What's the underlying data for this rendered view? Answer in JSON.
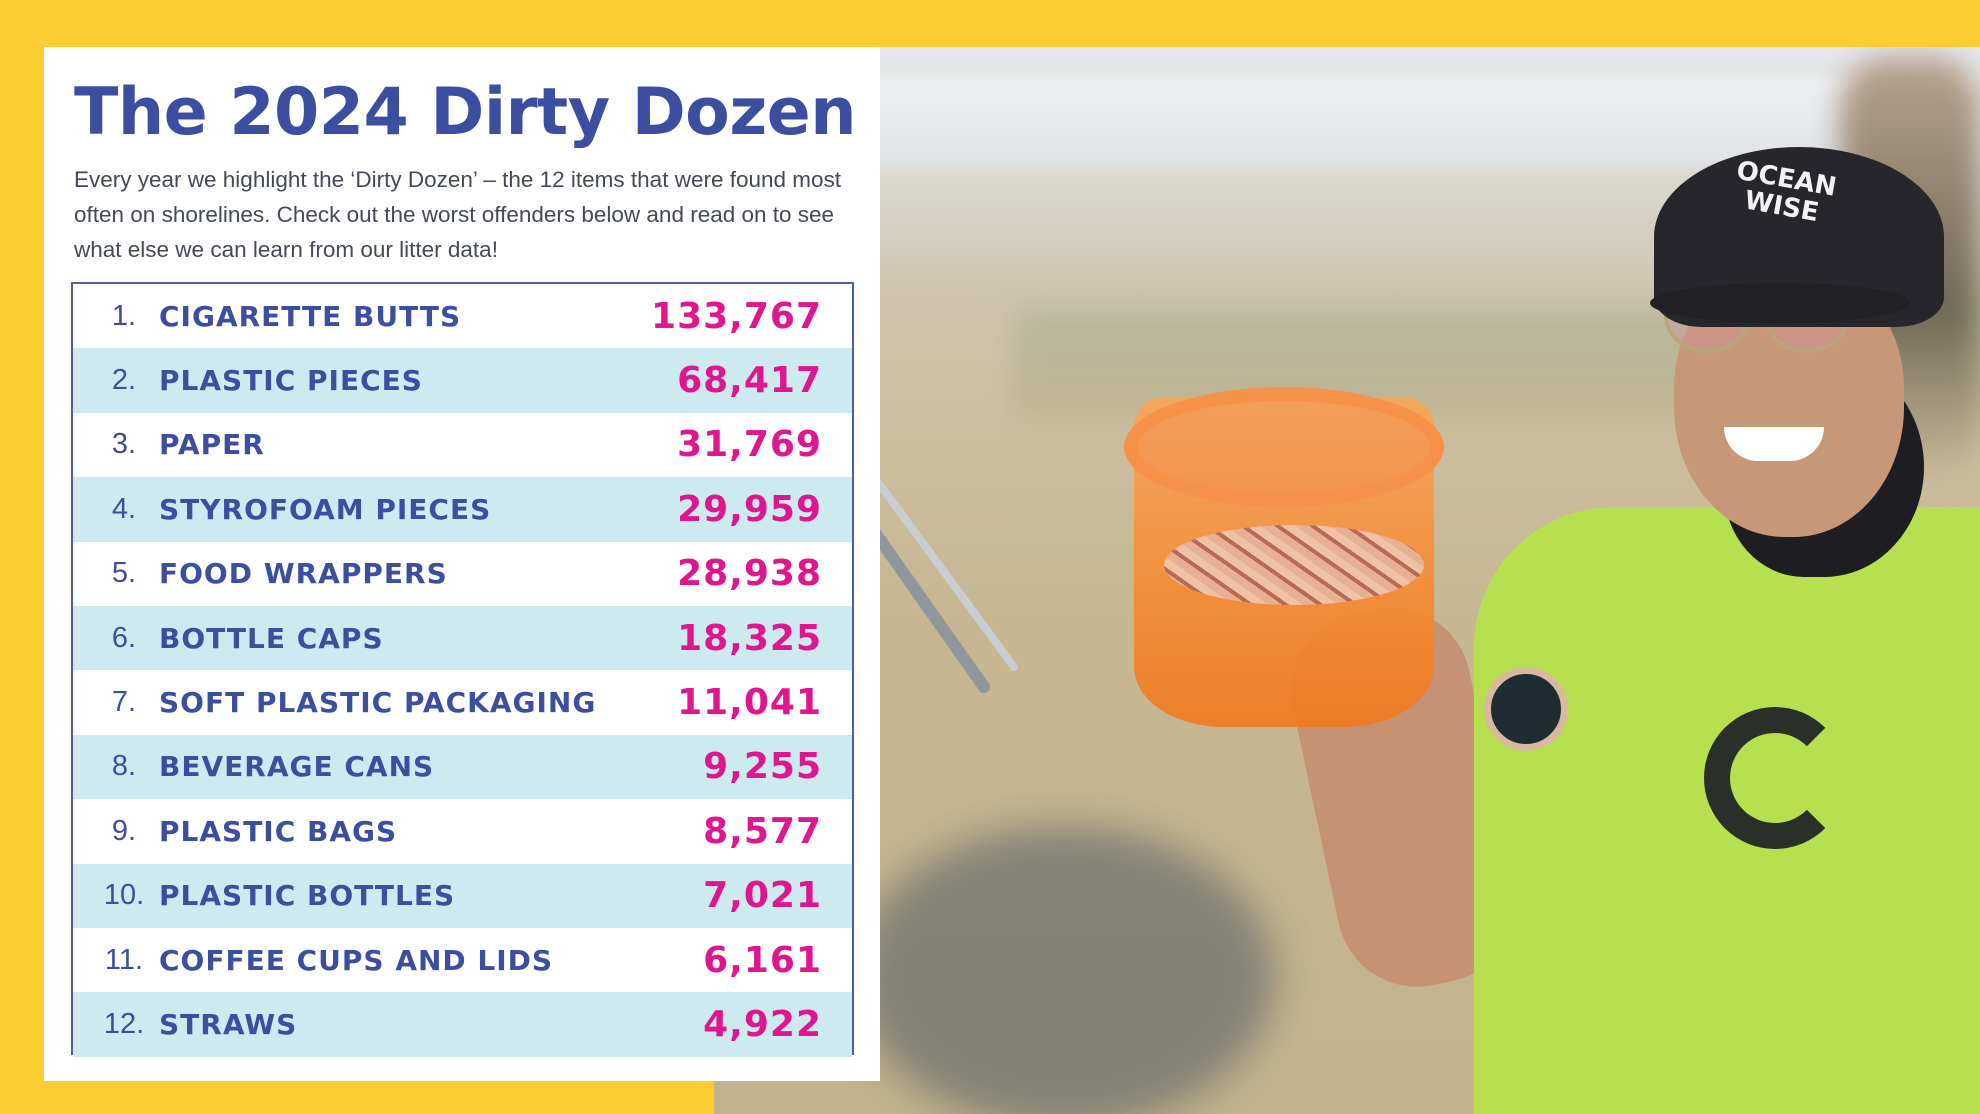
{
  "card": {
    "title": "The 2024 Dirty Dozen",
    "intro": "Every year we highlight the ‘Dirty Dozen’ – the 12 items that were found most often on shorelines. Check out the worst offenders below and read on to see what else we can learn from our litter data!"
  },
  "dirty_dozen": [
    {
      "rank": "1.",
      "item": "CIGARETTE BUTTS",
      "count": "133,767"
    },
    {
      "rank": "2.",
      "item": "PLASTIC PIECES",
      "count": "68,417"
    },
    {
      "rank": "3.",
      "item": "PAPER",
      "count": "31,769"
    },
    {
      "rank": "4.",
      "item": "STYROFOAM PIECES",
      "count": "29,959"
    },
    {
      "rank": "5.",
      "item": "FOOD WRAPPERS",
      "count": "28,938"
    },
    {
      "rank": "6.",
      "item": "BOTTLE CAPS",
      "count": "18,325"
    },
    {
      "rank": "7.",
      "item": "SOFT PLASTIC PACKAGING",
      "count": "11,041"
    },
    {
      "rank": "8.",
      "item": "BEVERAGE CANS",
      "count": "9,255"
    },
    {
      "rank": "9.",
      "item": "PLASTIC BAGS",
      "count": "8,577"
    },
    {
      "rank": "10.",
      "item": "PLASTIC BOTTLES",
      "count": "7,021"
    },
    {
      "rank": "11.",
      "item": "COFFEE CUPS AND LIDS",
      "count": "6,161"
    },
    {
      "rank": "12.",
      "item": "STRAWS",
      "count": "4,922"
    }
  ],
  "photo": {
    "cap_text": "OCEAN WISE"
  },
  "colors": {
    "background": "#fccd32",
    "title": "#3b4ea0",
    "count": "#e0168e",
    "row_alt": "#cdeaf1"
  }
}
